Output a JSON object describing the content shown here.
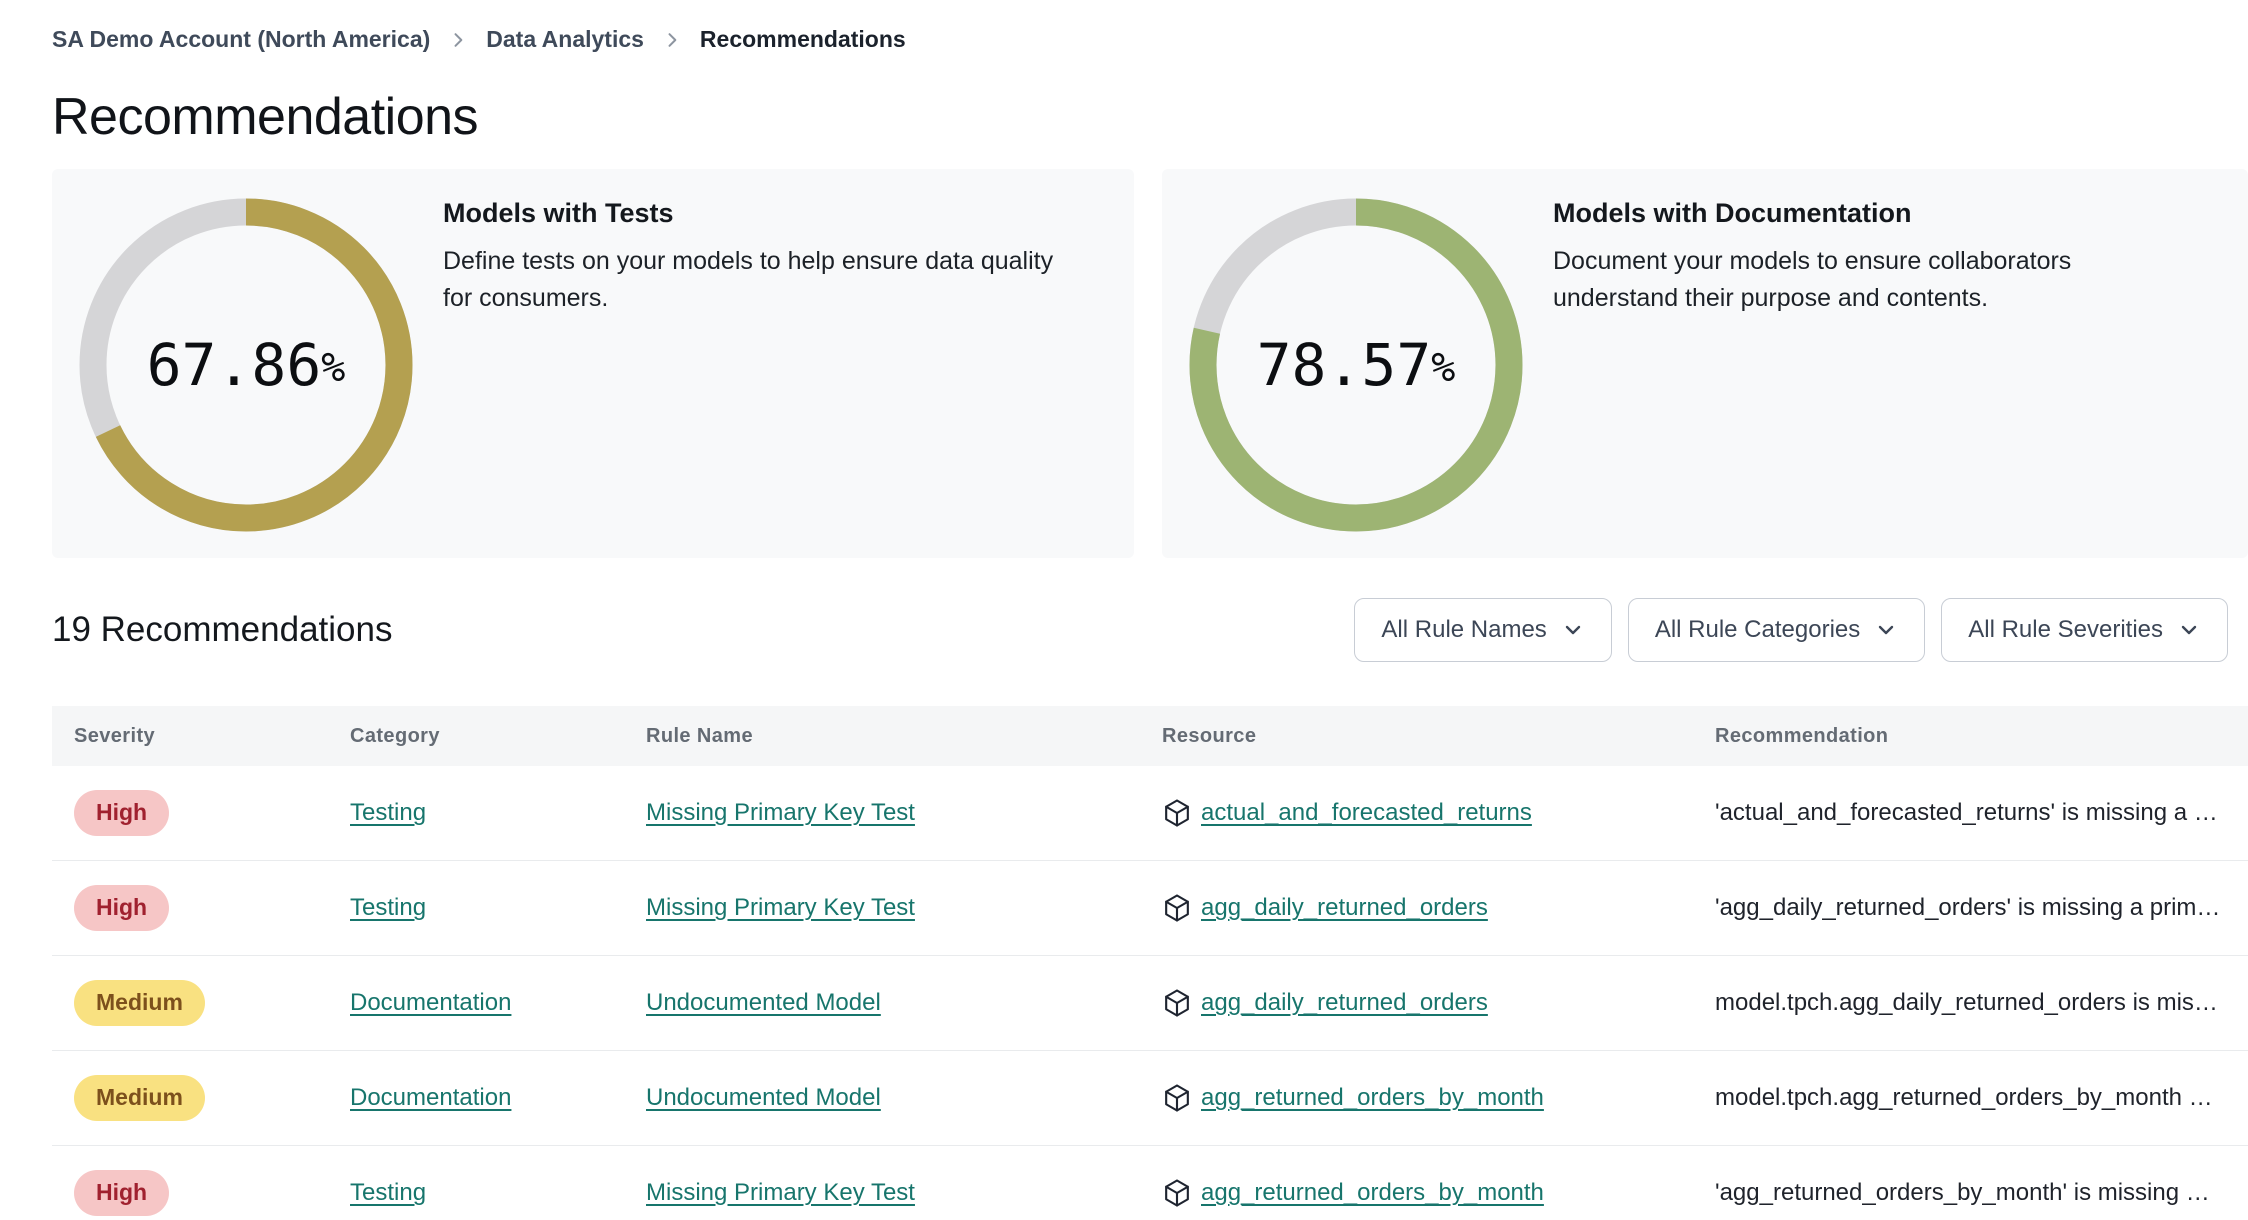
{
  "breadcrumb": {
    "items": [
      {
        "label": "SA Demo Account (North America)"
      },
      {
        "label": "Data Analytics"
      },
      {
        "label": "Recommendations"
      }
    ]
  },
  "page": {
    "title": "Recommendations"
  },
  "metric_cards": [
    {
      "title": "Models with Tests",
      "description": "Define tests on your models to help ensure data quality for consumers.",
      "value": "67.86",
      "suffix": "%",
      "percent": 67.86,
      "ring_color": "#b4a050",
      "track_color": "#d5d5d7"
    },
    {
      "title": "Models with Documentation",
      "description": "Document your models to ensure collaborators understand their purpose and contents.",
      "value": "78.57",
      "suffix": "%",
      "percent": 78.57,
      "ring_color": "#9db473",
      "track_color": "#d5d5d7"
    }
  ],
  "list_header": {
    "title": "19 Recommendations",
    "filters": [
      {
        "label": "All Rule Names"
      },
      {
        "label": "All Rule Categories"
      },
      {
        "label": "All Rule Severities"
      }
    ]
  },
  "table": {
    "columns": [
      "Severity",
      "Category",
      "Rule Name",
      "Resource",
      "Recommendation"
    ],
    "rows": [
      {
        "severity": "High",
        "severity_key": "high",
        "category": "Testing",
        "rule_name": "Missing Primary Key Test",
        "resource": "actual_and_forecasted_returns",
        "recommendation": "'actual_and_forecasted_returns' is missing a …"
      },
      {
        "severity": "High",
        "severity_key": "high",
        "category": "Testing",
        "rule_name": "Missing Primary Key Test",
        "resource": "agg_daily_returned_orders",
        "recommendation": "'agg_daily_returned_orders' is missing a prim…"
      },
      {
        "severity": "Medium",
        "severity_key": "medium",
        "category": "Documentation",
        "rule_name": "Undocumented Model",
        "resource": "agg_daily_returned_orders",
        "recommendation": "model.tpch.agg_daily_returned_orders is mis…"
      },
      {
        "severity": "Medium",
        "severity_key": "medium",
        "category": "Documentation",
        "rule_name": "Undocumented Model",
        "resource": "agg_returned_orders_by_month",
        "recommendation": "model.tpch.agg_returned_orders_by_month …"
      },
      {
        "severity": "High",
        "severity_key": "high",
        "category": "Testing",
        "rule_name": "Missing Primary Key Test",
        "resource": "agg_returned_orders_by_month",
        "recommendation": "'agg_returned_orders_by_month' is missing …"
      }
    ]
  },
  "colors": {
    "link": "#17756c",
    "severity_high_bg": "#f6c6c6",
    "severity_high_text": "#a0212f",
    "severity_medium_bg": "#f9e181",
    "severity_medium_text": "#7c501c"
  }
}
